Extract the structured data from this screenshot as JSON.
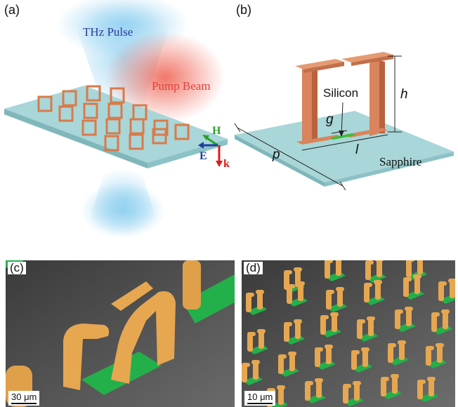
{
  "panels": {
    "a": {
      "label": "(a)",
      "thz_label": "THz Pulse",
      "pump_label": "Pump Beam",
      "h_label": "H",
      "e_label": "E",
      "k_label": "k",
      "colors": {
        "thz": "#7cc7ec",
        "pump": "#ee6a5a",
        "substrate": "#a9d6d8",
        "ring": "#d97a4a",
        "h": "#2ca02c",
        "e": "#1f3fa0",
        "k": "#e01b1b"
      }
    },
    "b": {
      "label": "(b)",
      "silicon_label": "Silicon",
      "sapphire_label": "Sapphire",
      "h_dim": "h",
      "g_dim": "g",
      "l_dim": "l",
      "p_dim": "p",
      "colors": {
        "pillar": "#d9845c",
        "silicon": "#3bbf3b",
        "substrate": "#a9d6d8"
      }
    },
    "c": {
      "label": "(c)",
      "scale_text": "30 μm"
    },
    "d": {
      "label": "(d)",
      "scale_text": "10 μm"
    }
  }
}
